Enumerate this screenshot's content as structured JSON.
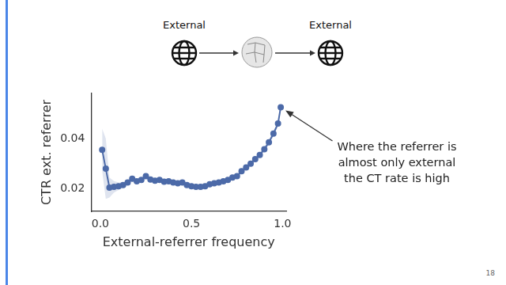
{
  "chart_data": {
    "type": "line",
    "x_label": "External-referrer frequency",
    "y_label": "CTR ext. referrer",
    "x": [
      0.01,
      0.03,
      0.05,
      0.075,
      0.1,
      0.125,
      0.15,
      0.175,
      0.2,
      0.225,
      0.25,
      0.275,
      0.3,
      0.325,
      0.35,
      0.375,
      0.4,
      0.425,
      0.45,
      0.475,
      0.5,
      0.525,
      0.55,
      0.575,
      0.6,
      0.625,
      0.65,
      0.675,
      0.7,
      0.725,
      0.75,
      0.775,
      0.8,
      0.825,
      0.85,
      0.875,
      0.9,
      0.925,
      0.95,
      0.975,
      0.99
    ],
    "values": [
      0.0355,
      0.028,
      0.0205,
      0.0208,
      0.021,
      0.0215,
      0.0225,
      0.024,
      0.023,
      0.0235,
      0.025,
      0.0237,
      0.0232,
      0.0235,
      0.0228,
      0.023,
      0.0225,
      0.0222,
      0.0225,
      0.0215,
      0.021,
      0.0208,
      0.0208,
      0.021,
      0.0218,
      0.0222,
      0.0225,
      0.023,
      0.0235,
      0.0245,
      0.025,
      0.027,
      0.0285,
      0.03,
      0.0318,
      0.0335,
      0.0358,
      0.0385,
      0.042,
      0.046,
      0.0525
    ],
    "lower": [
      0.027,
      0.016,
      0.0165,
      0.0185,
      0.0195,
      0.0205,
      0.0217,
      0.0232,
      0.0222,
      0.0227,
      0.0242,
      0.0229,
      0.0224,
      0.0227,
      0.022,
      0.0222,
      0.0217,
      0.0214,
      0.0217,
      0.0207,
      0.0202,
      0.02,
      0.02,
      0.0202,
      0.021,
      0.0214,
      0.0217,
      0.0222,
      0.0227,
      0.0237,
      0.0242,
      0.0262,
      0.0277,
      0.0292,
      0.031,
      0.0326,
      0.0349,
      0.0375,
      0.041,
      0.0448,
      0.051
    ],
    "upper": [
      0.044,
      0.04,
      0.0245,
      0.0231,
      0.0225,
      0.0225,
      0.0233,
      0.0248,
      0.0238,
      0.0243,
      0.0258,
      0.0245,
      0.024,
      0.0243,
      0.0236,
      0.0238,
      0.0233,
      0.023,
      0.0233,
      0.0223,
      0.0218,
      0.0216,
      0.0216,
      0.0218,
      0.0226,
      0.023,
      0.0233,
      0.0238,
      0.0243,
      0.0253,
      0.0258,
      0.0278,
      0.0293,
      0.0308,
      0.0326,
      0.0344,
      0.0367,
      0.0395,
      0.043,
      0.0472,
      0.054
    ],
    "color": "#4c6aa8",
    "marker": "circle",
    "xlim": [
      -0.05,
      1.02
    ],
    "ylim": [
      0.011,
      0.058
    ],
    "xticks": [
      {
        "value": 0,
        "label": "0.0"
      },
      {
        "value": 0.5,
        "label": "0.5"
      },
      {
        "value": 1,
        "label": "1.0"
      }
    ],
    "yticks": [
      0.02,
      0.04
    ],
    "grid": false,
    "annotation": [
      "Where the referrer is",
      "almost only external",
      "the CT rate is high"
    ]
  },
  "diagram": {
    "source_label": "External",
    "target_label": "External"
  },
  "page_number": 18
}
